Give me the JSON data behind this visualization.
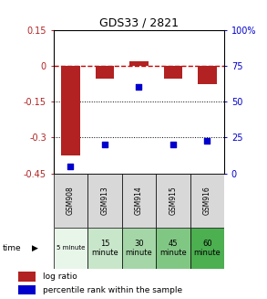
{
  "title": "GDS33 / 2821",
  "samples": [
    "GSM908",
    "GSM913",
    "GSM914",
    "GSM915",
    "GSM916"
  ],
  "time_labels": [
    "5 minute",
    "15\nminute",
    "30\nminute",
    "45\nminute",
    "60\nminute"
  ],
  "time_colors": [
    "#e8f5e9",
    "#c8e6c9",
    "#a5d6a7",
    "#81c784",
    "#4caf50"
  ],
  "log_ratios": [
    -0.375,
    -0.055,
    0.02,
    -0.055,
    -0.075
  ],
  "percentile_ranks": [
    5,
    20,
    60,
    20,
    23
  ],
  "ylim_left": [
    -0.45,
    0.15
  ],
  "ylim_right": [
    0,
    100
  ],
  "yticks_left": [
    0.15,
    0,
    -0.15,
    -0.3,
    -0.45
  ],
  "yticks_right": [
    100,
    75,
    50,
    25,
    0
  ],
  "bar_color": "#b22222",
  "dot_color": "#0000cc",
  "zero_line_color": "#cc0000",
  "hline_color": "#000000",
  "legend_log_ratio": "log ratio",
  "legend_percentile": "percentile rank within the sample",
  "time_label": "time"
}
